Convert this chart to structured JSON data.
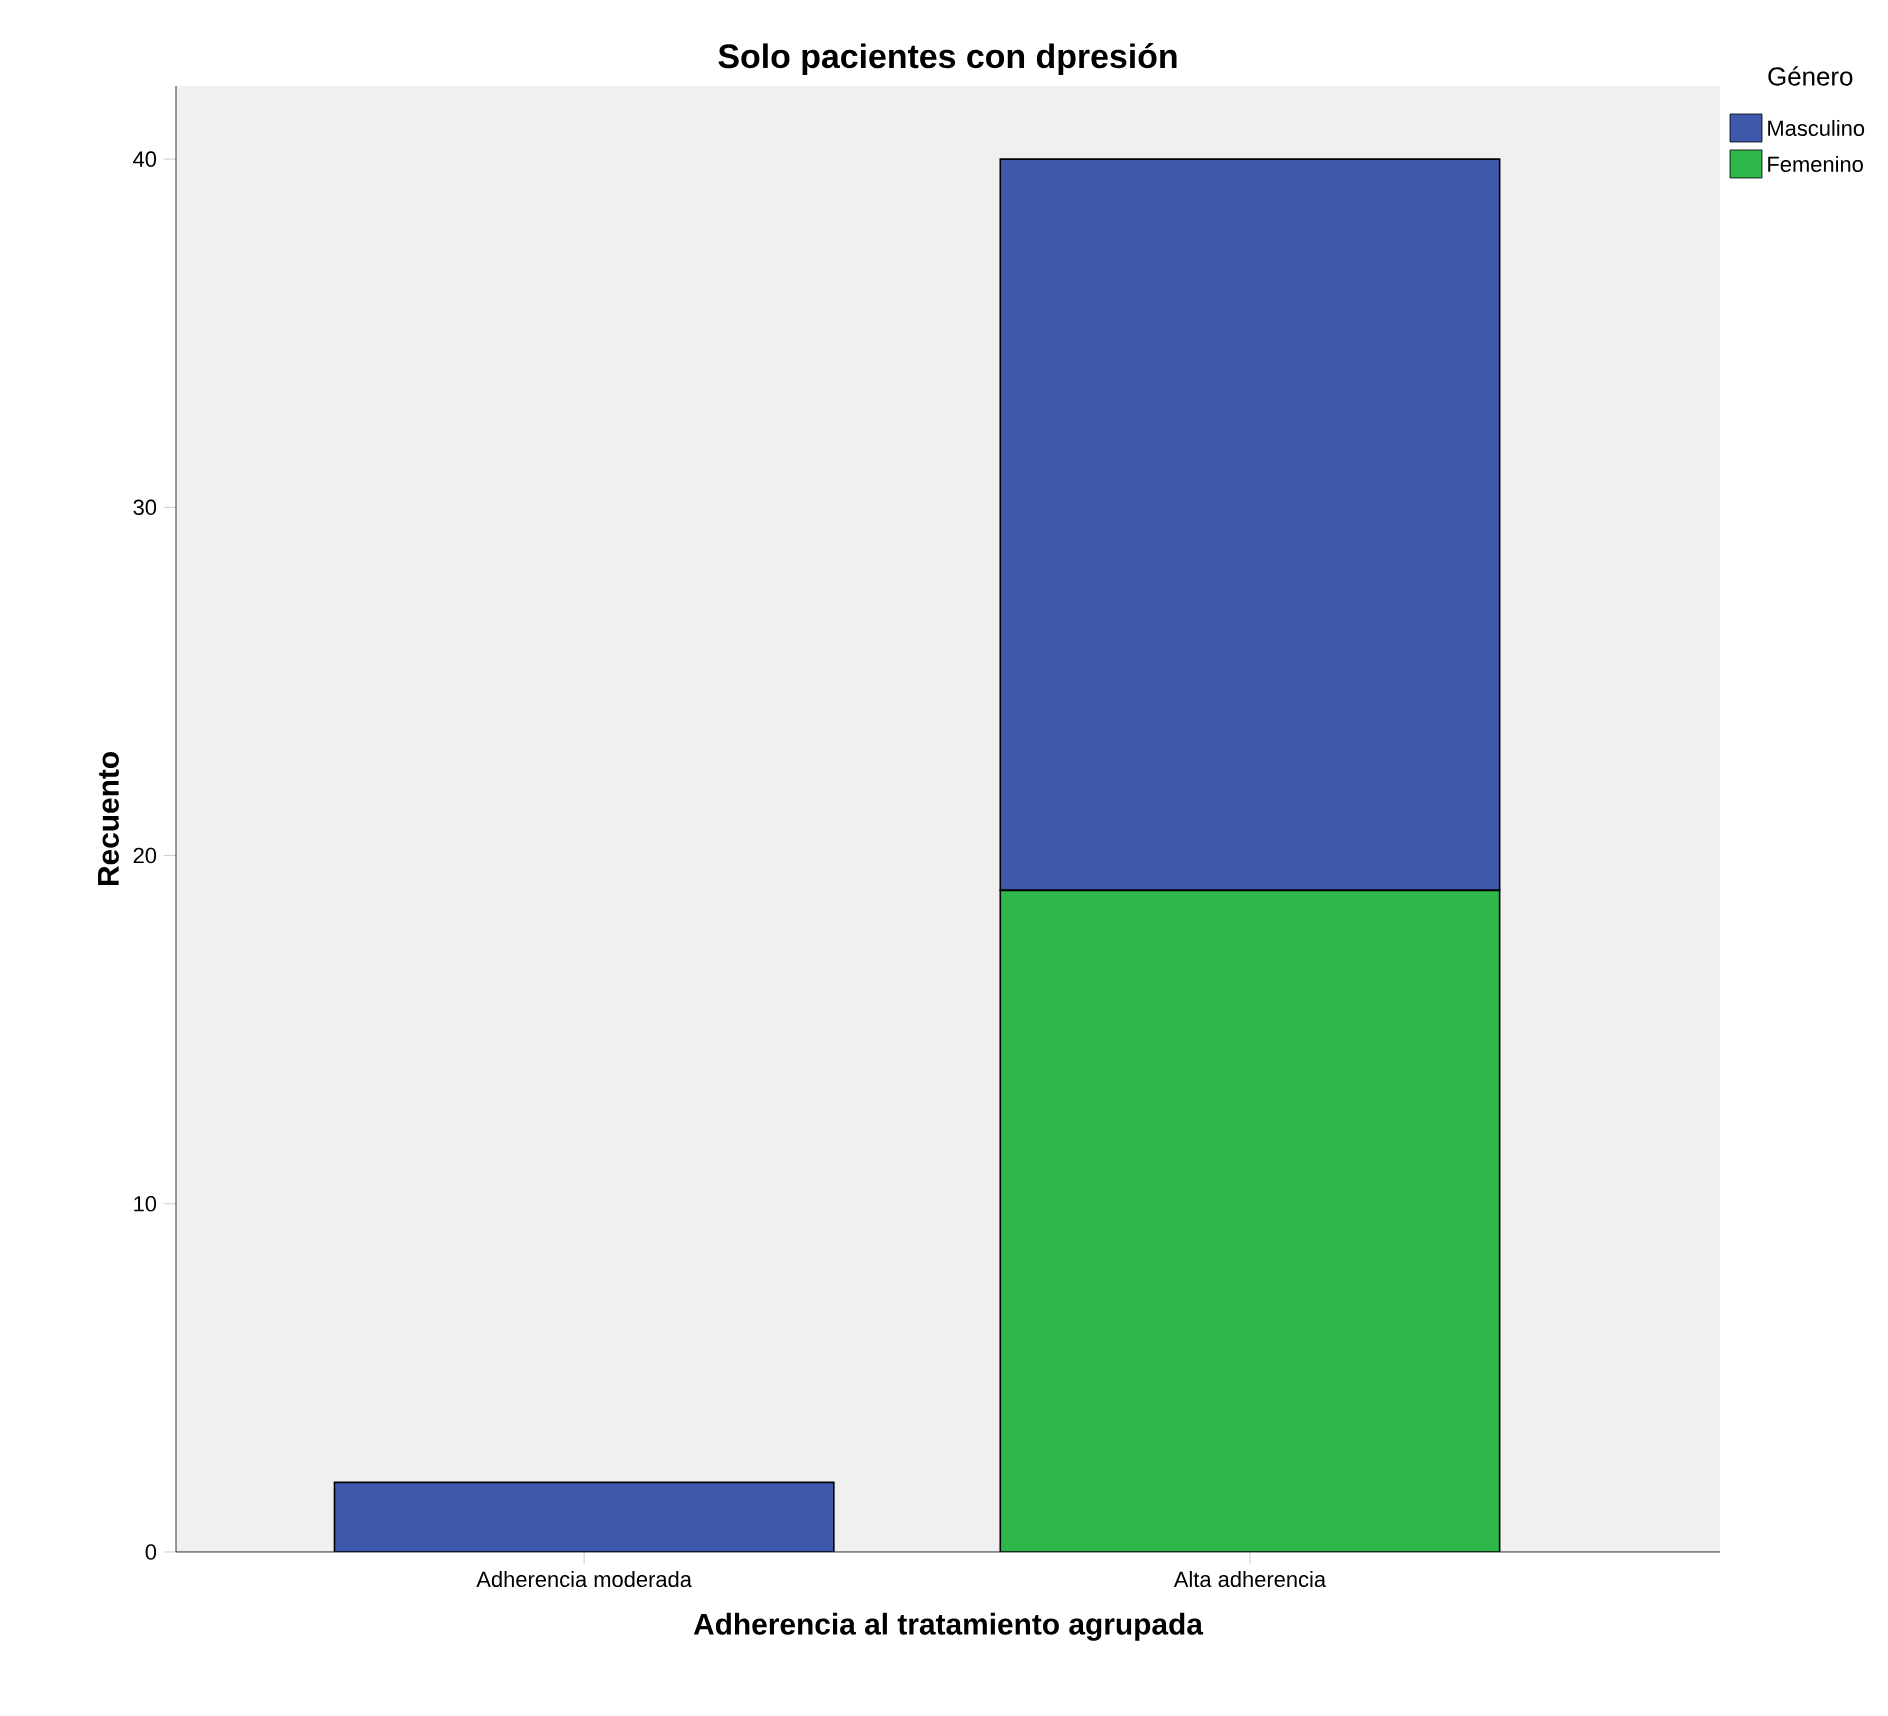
{
  "chart_data": {
    "type": "bar",
    "stacked": true,
    "title": "Solo pacientes con dpresión",
    "xlabel": "Adherencia al tratamiento agrupada",
    "ylabel": "Recuento",
    "legend_title": "Género",
    "legend": "top right",
    "categories": [
      "Adherencia moderada",
      "Alta adherencia"
    ],
    "series": [
      {
        "name": "Femenino",
        "color": "#2eb84b",
        "values": [
          0,
          19
        ]
      },
      {
        "name": "Masculino",
        "color": "#3e58ac",
        "values": [
          2,
          21
        ]
      }
    ],
    "ylim": [
      0,
      42.1
    ],
    "yticks": [
      0,
      10,
      20,
      30,
      40
    ]
  }
}
